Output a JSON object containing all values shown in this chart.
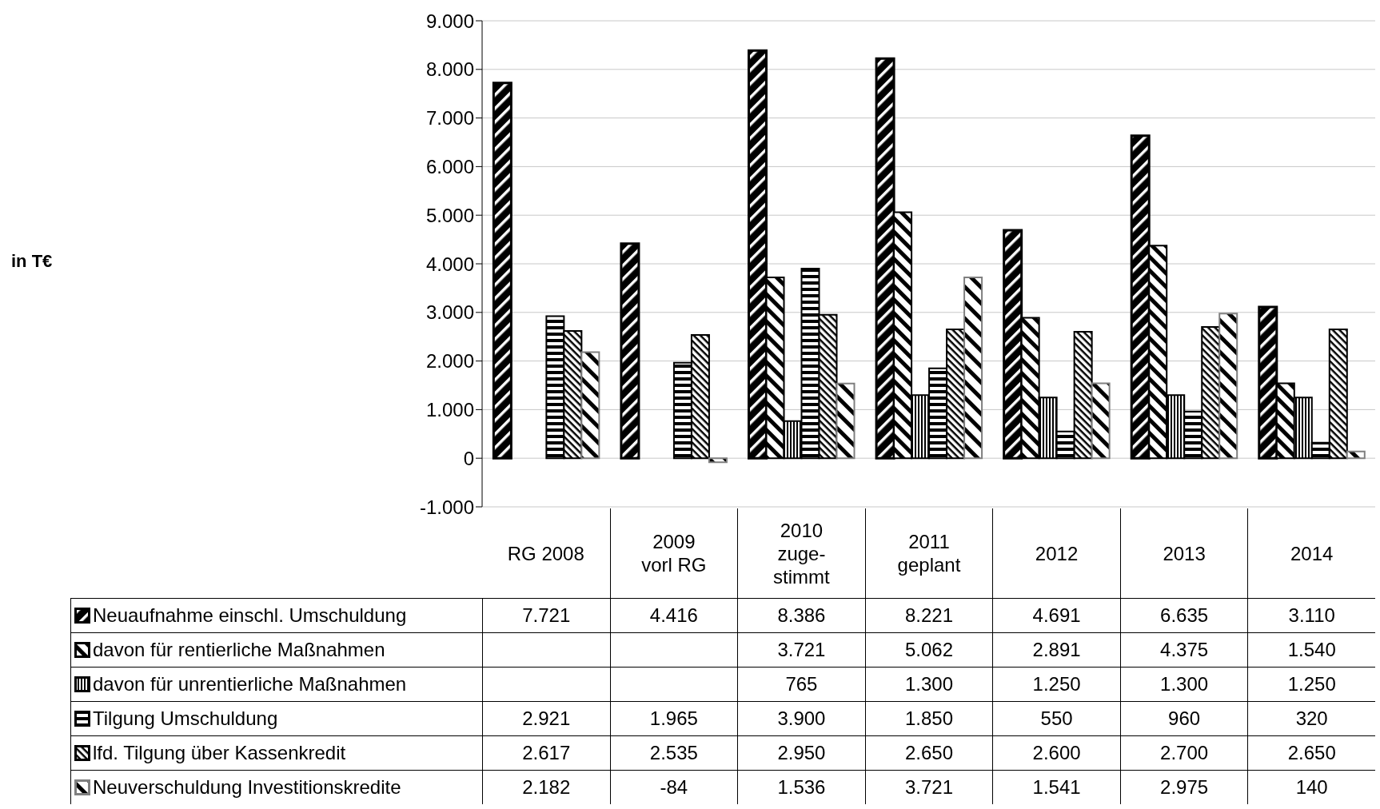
{
  "chart_data": {
    "type": "bar",
    "annotations": [
      "in T€"
    ],
    "categories": [
      "RG 2008",
      "2009 vorl RG",
      "2010 zuge-stimmt",
      "2011 geplant",
      "2012",
      "2013",
      "2014"
    ],
    "series": [
      {
        "name": "Neuaufnahme einschl. Umschuldung",
        "color": "#000000",
        "values": [
          7721,
          4416,
          8386,
          8221,
          4691,
          6635,
          3110
        ],
        "value_labels": [
          "7.721",
          "4.416",
          "8.386",
          "8.221",
          "4.691",
          "6.635",
          "3.110"
        ]
      },
      {
        "name": "davon für rentierliche Maßnahmen",
        "color": "#000000",
        "values": [
          null,
          null,
          3721,
          5062,
          2891,
          4375,
          1540
        ],
        "value_labels": [
          null,
          null,
          "3.721",
          "5.062",
          "2.891",
          "4.375",
          "1.540"
        ]
      },
      {
        "name": "davon für unrentierliche Maßnahmen",
        "color": "#000000",
        "values": [
          null,
          null,
          765,
          1300,
          1250,
          1300,
          1250
        ],
        "value_labels": [
          null,
          null,
          "765",
          "1.300",
          "1.250",
          "1.300",
          "1.250"
        ]
      },
      {
        "name": "Tilgung Umschuldung",
        "color": "#000000",
        "values": [
          2921,
          1965,
          3900,
          1850,
          550,
          960,
          320
        ],
        "value_labels": [
          "2.921",
          "1.965",
          "3.900",
          "1.850",
          "550",
          "960",
          "320"
        ]
      },
      {
        "name": "lfd. Tilgung über Kassenkredit",
        "color": "#000000",
        "values": [
          2617,
          2535,
          2950,
          2650,
          2600,
          2700,
          2650
        ],
        "value_labels": [
          "2.617",
          "2.535",
          "2.950",
          "2.650",
          "2.600",
          "2.700",
          "2.650"
        ]
      },
      {
        "name": "Neuverschuldung Investitionskredite",
        "color": "#808080",
        "values": [
          2182,
          -84,
          1536,
          3721,
          1541,
          2975,
          140
        ],
        "value_labels": [
          "2.182",
          "-84",
          "1.536",
          "3.721",
          "1.541",
          "2.975",
          "140"
        ]
      }
    ],
    "ylim": [
      -1000,
      9000
    ],
    "yticks": [
      {
        "value": -1000,
        "label": "-1.000"
      },
      {
        "value": 0,
        "label": "0"
      },
      {
        "value": 1000,
        "label": "1.000"
      },
      {
        "value": 2000,
        "label": "2.000"
      },
      {
        "value": 3000,
        "label": "3.000"
      },
      {
        "value": 4000,
        "label": "4.000"
      },
      {
        "value": 5000,
        "label": "5.000"
      },
      {
        "value": 6000,
        "label": "6.000"
      },
      {
        "value": 7000,
        "label": "7.000"
      },
      {
        "value": 8000,
        "label": "8.000"
      },
      {
        "value": 9000,
        "label": "9.000"
      }
    ],
    "grid": "y",
    "legend": "bottom"
  }
}
